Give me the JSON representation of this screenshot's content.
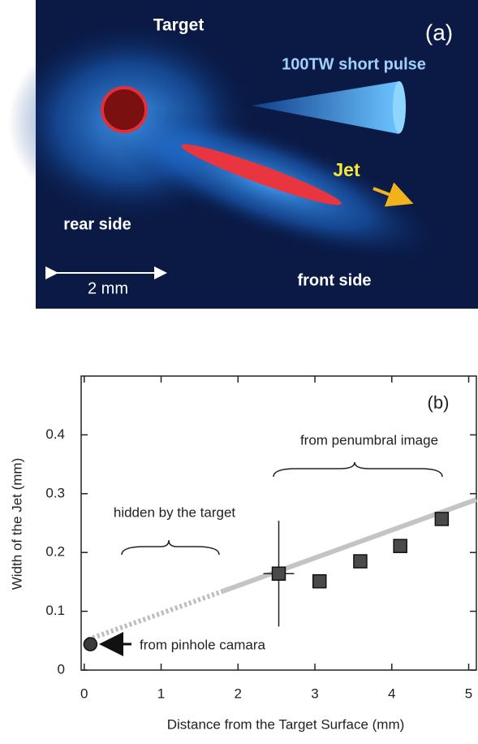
{
  "image_panel": {
    "label": "(a)",
    "target": "Target",
    "pulse": "100TW short pulse",
    "jet": "Jet",
    "rear": "rear side",
    "scale": "2 mm",
    "front": "front side"
  },
  "chart_data": {
    "type": "scatter",
    "panel_label": "(b)",
    "x_label": "Distance from the Target Surface (mm)",
    "y_label": "Width of the Jet (mm)",
    "xlim": [
      -0.04,
      5.1
    ],
    "ylim": [
      0,
      0.5
    ],
    "xticks": [
      0,
      1,
      2,
      3,
      4,
      5
    ],
    "yticks": [
      0,
      0.1,
      0.2,
      0.3,
      0.4
    ],
    "grid": false,
    "series": [
      {
        "marker": "circle",
        "color": "#3a3a3a",
        "x": [
          0.08
        ],
        "values": [
          0.044
        ]
      },
      {
        "marker": "square",
        "color": "#4a4a4a",
        "x": [
          2.53,
          3.06,
          3.59,
          4.11,
          4.65
        ],
        "values": [
          0.164,
          0.151,
          0.185,
          0.211,
          0.257
        ],
        "xerr": [
          0.2,
          null,
          null,
          null,
          null
        ],
        "yerr": [
          0.09,
          null,
          null,
          null,
          null
        ]
      },
      {
        "marker": "line",
        "style": "dotted",
        "color": "#bdbdbd",
        "x": [
          0.05,
          1.8
        ],
        "values": [
          0.052,
          0.134
        ]
      },
      {
        "marker": "line",
        "style": "solid",
        "color": "#c4c4c4",
        "x": [
          1.8,
          5.1
        ],
        "values": [
          0.134,
          0.29
        ]
      }
    ],
    "annotations": [
      "hidden by the target",
      "from penumbral image",
      "from pinhole camara"
    ]
  }
}
